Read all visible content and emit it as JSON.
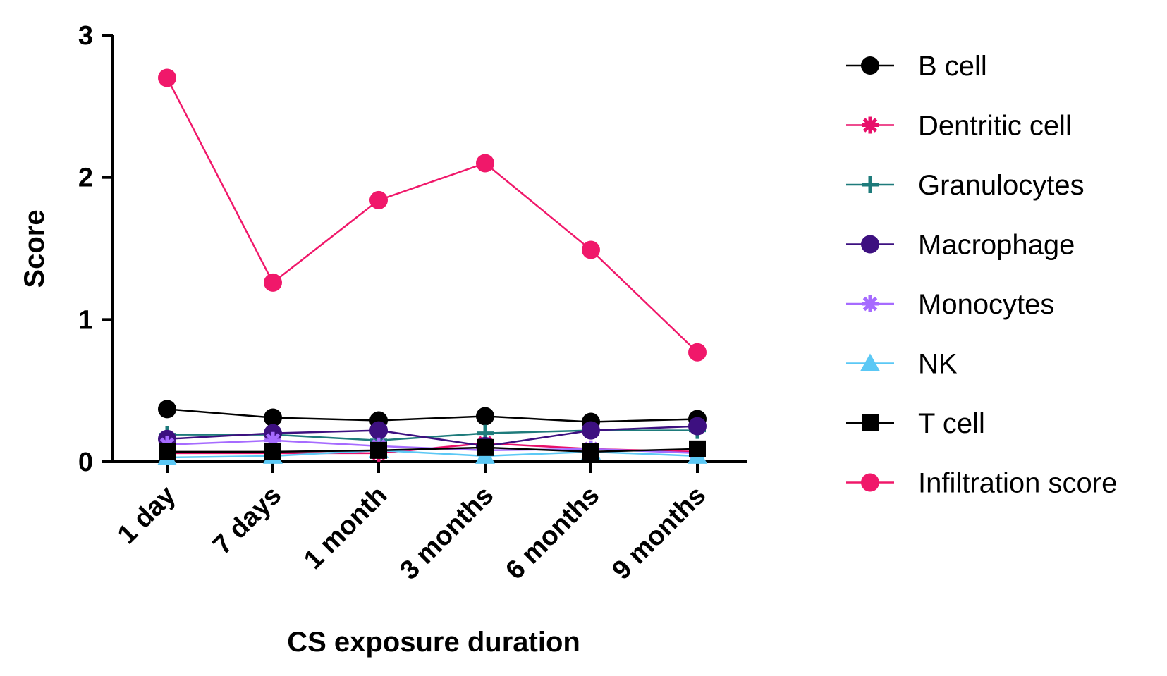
{
  "chart_data": {
    "type": "line",
    "xlabel": "CS exposure duration",
    "ylabel": "Score",
    "ylim": [
      0,
      3
    ],
    "yticks": [
      "0",
      "1",
      "2",
      "3"
    ],
    "categories": [
      "1 day",
      "7 days",
      "1 month",
      "3 months",
      "6 months",
      "9 months"
    ],
    "grid": false,
    "legend_position": "right",
    "series": [
      {
        "name": "B cell",
        "color": "#000000",
        "marker": "circle",
        "values": [
          0.37,
          0.31,
          0.29,
          0.32,
          0.28,
          0.3
        ]
      },
      {
        "name": "Dentritic cell",
        "color": "#E8106A",
        "marker": "asterisk",
        "values": [
          0.06,
          0.06,
          0.06,
          0.13,
          0.09,
          0.07
        ]
      },
      {
        "name": "Granulocytes",
        "color": "#1E7B7B",
        "marker": "plus",
        "values": [
          0.19,
          0.19,
          0.15,
          0.2,
          0.22,
          0.22
        ]
      },
      {
        "name": "Macrophage",
        "color": "#3D1080",
        "marker": "circle",
        "values": [
          0.16,
          0.2,
          0.22,
          0.11,
          0.22,
          0.25
        ]
      },
      {
        "name": "Monocytes",
        "color": "#A66BFF",
        "marker": "asterisk",
        "values": [
          0.12,
          0.15,
          0.11,
          0.08,
          0.09,
          0.06
        ]
      },
      {
        "name": "NK",
        "color": "#5BC8F5",
        "marker": "triangle",
        "values": [
          0.03,
          0.04,
          0.08,
          0.04,
          0.07,
          0.04
        ]
      },
      {
        "name": "T cell",
        "color": "#000000",
        "marker": "square",
        "values": [
          0.07,
          0.07,
          0.08,
          0.1,
          0.07,
          0.09
        ]
      },
      {
        "name": "Infiltration score",
        "color": "#F0186A",
        "marker": "circle",
        "values": [
          2.7,
          1.26,
          1.84,
          2.1,
          1.49,
          0.77
        ]
      }
    ]
  }
}
